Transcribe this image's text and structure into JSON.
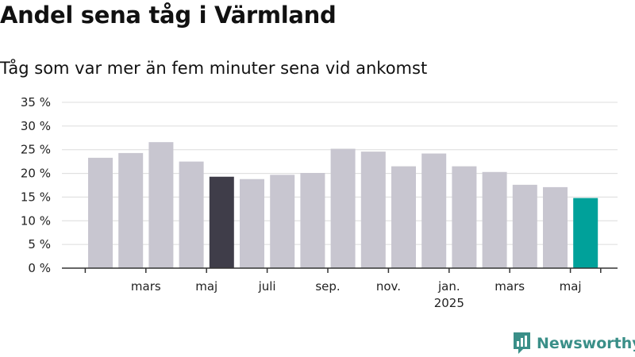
{
  "title": "Andel sena tåg i Värmland",
  "subtitle": "Tåg som var mer än fem minuter sena vid ankomst",
  "brand": {
    "name": "Newsworthy",
    "color": "#3a8f88"
  },
  "chart_data": {
    "type": "bar",
    "values": [
      23.3,
      24.3,
      26.6,
      22.5,
      19.3,
      18.8,
      19.7,
      20.1,
      25.2,
      24.6,
      21.5,
      24.2,
      21.5,
      20.3,
      17.6,
      17.1,
      14.8
    ],
    "bar_colors": [
      "#c8c6d0",
      "#c8c6d0",
      "#c8c6d0",
      "#c8c6d0",
      "#3f3d49",
      "#c8c6d0",
      "#c8c6d0",
      "#c8c6d0",
      "#c8c6d0",
      "#c8c6d0",
      "#c8c6d0",
      "#c8c6d0",
      "#c8c6d0",
      "#c8c6d0",
      "#c8c6d0",
      "#c8c6d0",
      "#00a19a"
    ],
    "x_tick_labels": [
      {
        "bar": 1.5,
        "lines": [
          "mars"
        ]
      },
      {
        "bar": 3.5,
        "lines": [
          "maj"
        ]
      },
      {
        "bar": 5.5,
        "lines": [
          "juli"
        ]
      },
      {
        "bar": 7.5,
        "lines": [
          "sep."
        ]
      },
      {
        "bar": 9.5,
        "lines": [
          "nov."
        ]
      },
      {
        "bar": 11.5,
        "lines": [
          "jan.",
          "2025"
        ]
      },
      {
        "bar": 13.5,
        "lines": [
          "mars"
        ]
      },
      {
        "bar": 15.5,
        "lines": [
          "maj"
        ]
      }
    ],
    "y_ticks": [
      {
        "value": 0,
        "label": "0 %"
      },
      {
        "value": 5,
        "label": "5 %"
      },
      {
        "value": 10,
        "label": "10 %"
      },
      {
        "value": 15,
        "label": "15 %"
      },
      {
        "value": 20,
        "label": "20 %"
      },
      {
        "value": 25,
        "label": "25 %"
      },
      {
        "value": 30,
        "label": "30 %"
      },
      {
        "value": 35,
        "label": "35 %"
      }
    ],
    "ylim": [
      0,
      35
    ],
    "grid": true,
    "xlabel": "",
    "ylabel": ""
  }
}
